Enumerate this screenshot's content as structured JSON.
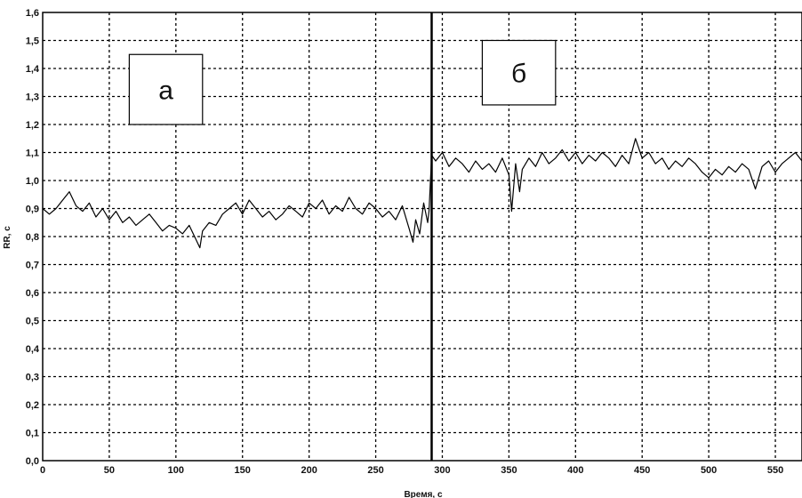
{
  "chart_data": {
    "type": "line",
    "xlabel": "Время, с",
    "ylabel": "RR, с",
    "xlim": [
      0,
      570
    ],
    "ylim": [
      0.0,
      1.6
    ],
    "x_ticks": [
      "0",
      "50",
      "100",
      "150",
      "200",
      "250",
      "300",
      "350",
      "400",
      "450",
      "500",
      "550"
    ],
    "y_ticks": [
      "0,0",
      "0,1",
      "0,2",
      "0,3",
      "0,4",
      "0,5",
      "0,6",
      "0,7",
      "0,8",
      "0,9",
      "1,0",
      "1,1",
      "1,2",
      "1,3",
      "1,4",
      "1,5",
      "1,6"
    ],
    "grid": true,
    "divider_x": 292,
    "annotations": [
      {
        "text": "а",
        "x_range": [
          65,
          120
        ],
        "y_range": [
          1.2,
          1.45
        ]
      },
      {
        "text": "б",
        "x_range": [
          330,
          385
        ],
        "y_range": [
          1.27,
          1.5
        ]
      }
    ],
    "series": [
      {
        "x": [
          0,
          5,
          10,
          15,
          20,
          25,
          30,
          35,
          40,
          45,
          50,
          55,
          60,
          65,
          70,
          75,
          80,
          85,
          90,
          95,
          100,
          105,
          110,
          115,
          118,
          120,
          125,
          130,
          135,
          140,
          145,
          150,
          155,
          160,
          165,
          170,
          175,
          180,
          185,
          190,
          195,
          200,
          205,
          210,
          215,
          220,
          225,
          230,
          235,
          240,
          245,
          250,
          255,
          260,
          265,
          270,
          275,
          278,
          280,
          283,
          286,
          289,
          290,
          292,
          295,
          300,
          305,
          310,
          315,
          320,
          325,
          330,
          335,
          340,
          345,
          350,
          352,
          355,
          358,
          360,
          365,
          370,
          375,
          380,
          385,
          390,
          395,
          400,
          405,
          410,
          415,
          420,
          425,
          430,
          435,
          440,
          445,
          450,
          455,
          460,
          465,
          470,
          475,
          480,
          485,
          490,
          495,
          500,
          505,
          510,
          515,
          520,
          525,
          530,
          535,
          540,
          545,
          550,
          555,
          560,
          565,
          570
        ],
        "values": [
          0.9,
          0.88,
          0.9,
          0.93,
          0.96,
          0.91,
          0.89,
          0.92,
          0.87,
          0.9,
          0.86,
          0.89,
          0.85,
          0.87,
          0.84,
          0.86,
          0.88,
          0.85,
          0.82,
          0.84,
          0.83,
          0.81,
          0.84,
          0.79,
          0.76,
          0.82,
          0.85,
          0.84,
          0.88,
          0.9,
          0.92,
          0.88,
          0.93,
          0.9,
          0.87,
          0.89,
          0.86,
          0.88,
          0.91,
          0.89,
          0.87,
          0.92,
          0.9,
          0.93,
          0.88,
          0.91,
          0.89,
          0.94,
          0.9,
          0.88,
          0.92,
          0.9,
          0.87,
          0.89,
          0.86,
          0.91,
          0.83,
          0.78,
          0.86,
          0.81,
          0.92,
          0.85,
          0.89,
          1.09,
          1.07,
          1.1,
          1.05,
          1.08,
          1.06,
          1.03,
          1.07,
          1.04,
          1.06,
          1.03,
          1.08,
          1.02,
          0.89,
          1.06,
          0.96,
          1.04,
          1.08,
          1.05,
          1.1,
          1.06,
          1.08,
          1.11,
          1.07,
          1.1,
          1.06,
          1.09,
          1.07,
          1.1,
          1.08,
          1.05,
          1.09,
          1.06,
          1.15,
          1.08,
          1.1,
          1.06,
          1.08,
          1.04,
          1.07,
          1.05,
          1.08,
          1.06,
          1.03,
          1.01,
          1.04,
          1.02,
          1.05,
          1.03,
          1.06,
          1.04,
          0.97,
          1.05,
          1.07,
          1.03,
          1.06,
          1.08,
          1.1,
          1.07
        ]
      }
    ]
  }
}
